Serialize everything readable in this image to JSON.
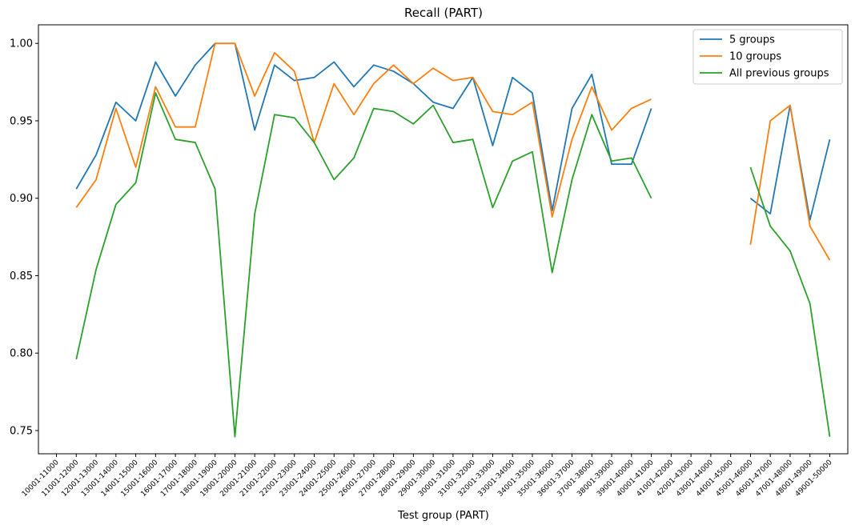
{
  "chart_data": {
    "type": "line",
    "title": "Recall (PART)",
    "xlabel": "Test group (PART)",
    "ylabel": "",
    "ylim": [
      0.735,
      1.012
    ],
    "yticks": [
      "0.75",
      "0.80",
      "0.85",
      "0.90",
      "0.95",
      "1.00"
    ],
    "legend_position": "top-right",
    "grid": false,
    "categories": [
      "10001-11000",
      "11001-12000",
      "12001-13000",
      "13001-14000",
      "14001-15000",
      "15001-16000",
      "16001-17000",
      "17001-18000",
      "18001-19000",
      "19001-20000",
      "20001-21000",
      "21001-22000",
      "22001-23000",
      "23001-24000",
      "24001-25000",
      "25001-26000",
      "26001-27000",
      "27001-28000",
      "28001-29000",
      "29001-30000",
      "30001-31000",
      "31001-32000",
      "32001-33000",
      "33001-34000",
      "34001-35000",
      "35001-36000",
      "36001-37000",
      "37001-38000",
      "38001-39000",
      "39001-40000",
      "40001-41000",
      "41001-42000",
      "42001-43000",
      "43001-44000",
      "44001-45000",
      "45001-46000",
      "46001-47000",
      "47001-48000",
      "48001-49000",
      "49001-50000"
    ],
    "series": [
      {
        "name": "5 groups",
        "color": "#1f77b4",
        "values": [
          null,
          0.906,
          0.928,
          0.962,
          0.95,
          0.988,
          0.966,
          0.986,
          1.0,
          1.0,
          0.944,
          0.986,
          0.976,
          0.978,
          0.988,
          0.972,
          0.986,
          0.982,
          0.974,
          0.962,
          0.958,
          0.978,
          0.934,
          0.978,
          0.968,
          0.892,
          0.958,
          0.98,
          0.922,
          0.922,
          0.958,
          null,
          null,
          null,
          null,
          0.9,
          0.89,
          0.96,
          0.886,
          0.938
        ]
      },
      {
        "name": "10 groups",
        "color": "#ff7f0e",
        "values": [
          null,
          0.894,
          0.912,
          0.958,
          0.92,
          0.972,
          0.946,
          0.946,
          1.0,
          1.0,
          0.966,
          0.994,
          0.982,
          0.936,
          0.974,
          0.954,
          0.974,
          0.986,
          0.974,
          0.984,
          0.976,
          0.978,
          0.956,
          0.954,
          0.962,
          0.888,
          0.938,
          0.972,
          0.944,
          0.958,
          0.964,
          null,
          null,
          null,
          null,
          0.87,
          0.95,
          0.96,
          0.882,
          0.86
        ]
      },
      {
        "name": "All previous groups",
        "color": "#2ca02c",
        "values": [
          null,
          0.796,
          0.854,
          0.896,
          0.91,
          0.968,
          0.938,
          0.936,
          0.906,
          0.746,
          0.89,
          0.954,
          0.952,
          0.936,
          0.912,
          0.926,
          0.958,
          0.956,
          0.948,
          0.96,
          0.936,
          0.938,
          0.894,
          0.924,
          0.93,
          0.852,
          0.912,
          0.954,
          0.924,
          0.926,
          0.9,
          null,
          null,
          null,
          null,
          0.92,
          0.882,
          0.866,
          0.832,
          0.746
        ]
      }
    ]
  }
}
